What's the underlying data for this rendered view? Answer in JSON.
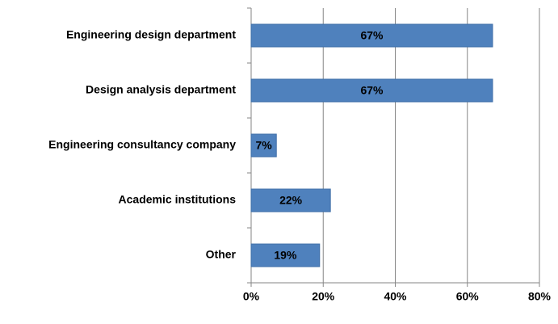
{
  "chart_data": {
    "type": "bar",
    "orientation": "horizontal",
    "categories": [
      "Engineering design department",
      "Design analysis department",
      "Engineering consultancy company",
      "Academic institutions",
      "Other"
    ],
    "values": [
      67,
      67,
      7,
      22,
      19
    ],
    "value_labels": [
      "67%",
      "67%",
      "7%",
      "22%",
      "19%"
    ],
    "color": "#4f81bd",
    "xlim": [
      0,
      80
    ],
    "xticks": [
      {
        "value": 0,
        "label": "0%"
      },
      {
        "value": 20,
        "label": "20%"
      },
      {
        "value": 40,
        "label": "40%"
      },
      {
        "value": 60,
        "label": "60%"
      },
      {
        "value": 80,
        "label": "80%"
      }
    ],
    "grid": true
  }
}
